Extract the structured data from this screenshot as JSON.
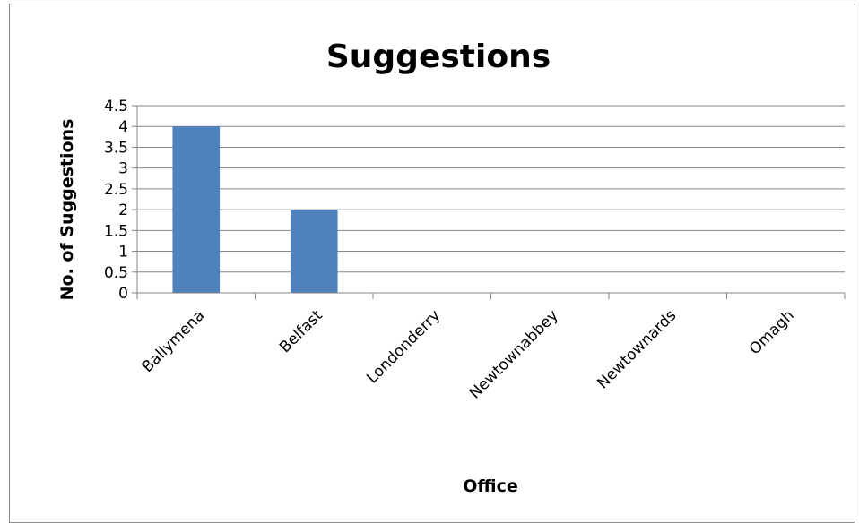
{
  "chart_data": {
    "type": "bar",
    "title": "Suggestions",
    "xlabel": "Office",
    "ylabel": "No. of Suggestions",
    "categories": [
      "Ballymena",
      "Belfast",
      "Londonderry",
      "Newtownabbey",
      "Newtownards",
      "Omagh"
    ],
    "values": [
      4,
      2,
      0,
      0,
      0,
      0
    ],
    "ylim": [
      0,
      4.5
    ],
    "yticks": [
      "0",
      "0.5",
      "1",
      "1.5",
      "2",
      "2.5",
      "3",
      "3.5",
      "4",
      "4.5"
    ],
    "grid": true,
    "legend": "none",
    "bar_color": "#4f81bd",
    "grid_color": "#868686"
  }
}
